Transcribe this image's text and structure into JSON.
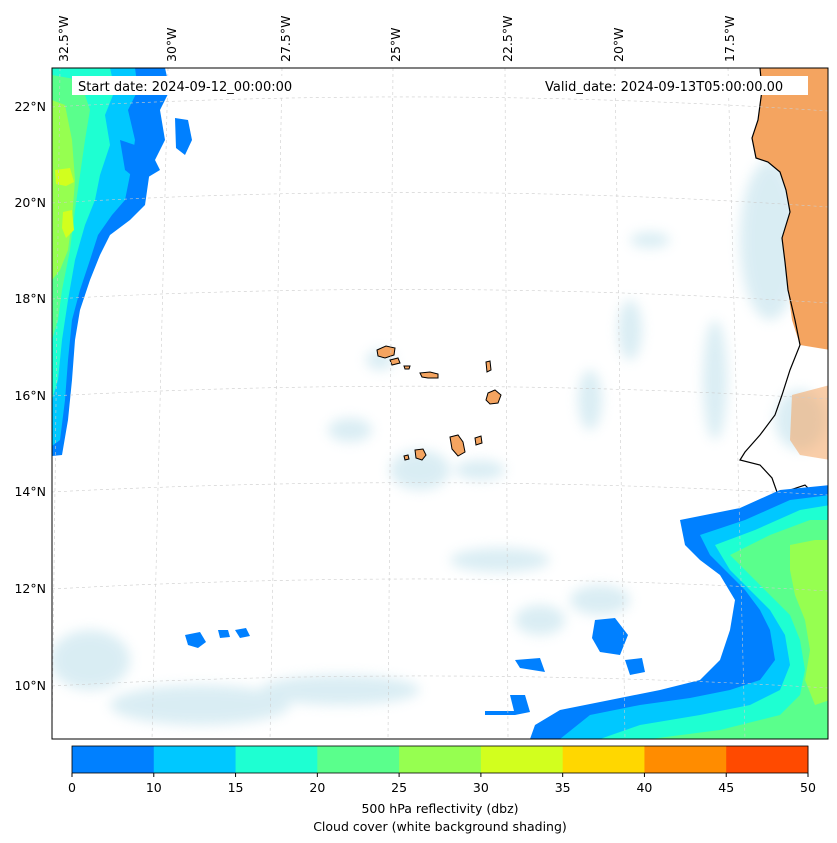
{
  "map": {
    "start_date": "Start date: 2024-09-12_00:00:00",
    "valid_date": "Valid_date: 2024-09-13T05:00:00.00",
    "lon_labels": [
      "32.5°W",
      "30°W",
      "27.5°W",
      "25°W",
      "22.5°W",
      "20°W",
      "17.5°W"
    ],
    "lat_labels": [
      "22°N",
      "20°N",
      "18°N",
      "16°N",
      "14°N",
      "12°N",
      "10°N"
    ]
  },
  "colorbar": {
    "title": "500 hPa reflectivity (dbz)",
    "subtitle": "Cloud cover (white background shading)",
    "ticks": [
      "0",
      "10",
      "15",
      "20",
      "25",
      "30",
      "35",
      "40",
      "45",
      "50"
    ],
    "colors": [
      "#0080ff",
      "#00c8ff",
      "#1effd2",
      "#5aff8c",
      "#96ff50",
      "#d2ff1e",
      "#ffd700",
      "#ff8c00",
      "#ff4a00"
    ]
  },
  "colors": {
    "land": "#f4a460",
    "cloud": "#add8e6",
    "coast": "#000000",
    "grid": "#cccccc"
  }
}
